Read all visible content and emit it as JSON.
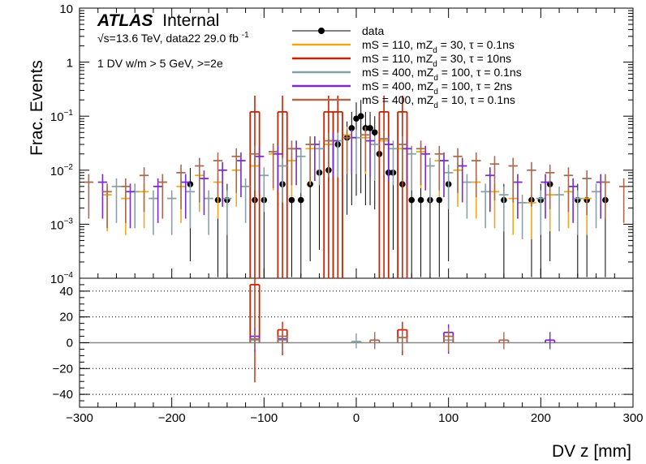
{
  "labels": {
    "atlas": "ATLAS",
    "internal": "Internal",
    "energy_line": "√s=13.6 TeV, data22 29.0 fb",
    "lumi_superscript": "-1",
    "selection": "1 DV w/m > 5 GeV, >=2e"
  },
  "chart_data": [
    {
      "type": "line",
      "panel": "main",
      "title": "",
      "xlabel": "DV z [mm]",
      "ylabel": "Frac. Events",
      "xlim": [
        -300,
        300
      ],
      "ylim": [
        0.0001,
        10
      ],
      "yscale": "log",
      "y_ticks": [
        {
          "v": 10,
          "base": "10",
          "exp": ""
        },
        {
          "v": 1,
          "base": "1",
          "exp": ""
        },
        {
          "v": 0.1,
          "base": "10",
          "exp": "−1"
        },
        {
          "v": 0.01,
          "base": "10",
          "exp": "−2"
        },
        {
          "v": 0.001,
          "base": "10",
          "exp": "−3"
        },
        {
          "v": 0.0001,
          "base": "10",
          "exp": "−4"
        }
      ],
      "bin_width": 10,
      "legend_position": "top-right",
      "series": [
        {
          "name": "data",
          "legend": [
            "data"
          ],
          "color": "#000000",
          "style": "points",
          "x": [
            -180,
            -150,
            -140,
            -110,
            -100,
            -80,
            -70,
            -60,
            -50,
            -40,
            -30,
            -20,
            -10,
            -5,
            0,
            5,
            10,
            15,
            20,
            25,
            35,
            40,
            50,
            60,
            70,
            80,
            90,
            100,
            160,
            190,
            200,
            210,
            240,
            250,
            270
          ],
          "y": [
            0.0055,
            0.0028,
            0.0028,
            0.0028,
            0.0028,
            0.0055,
            0.0028,
            0.0028,
            0.0055,
            0.009,
            0.01,
            0.03,
            0.04,
            0.06,
            0.09,
            0.1,
            0.06,
            0.06,
            0.05,
            0.02,
            0.009,
            0.009,
            0.0055,
            0.0028,
            0.0028,
            0.0028,
            0.0028,
            0.0055,
            0.0028,
            0.0028,
            0.0028,
            0.0055,
            0.0028,
            0.0028,
            0.0028
          ]
        },
        {
          "name": "mS110_mZd30_tau0p1",
          "legend": [
            "mS = 110, mZ",
            "d",
            " = 30, τ = 0.1ns"
          ],
          "color": "#f0a818",
          "style": "hist",
          "x": [
            -270,
            -250,
            -230,
            -210,
            -190,
            -170,
            -150,
            -130,
            -110,
            -90,
            -70,
            -50,
            -30,
            -10,
            10,
            30,
            50,
            70,
            90,
            110,
            130,
            150,
            170,
            190,
            210,
            230,
            250
          ],
          "y": [
            0.0035,
            0.003,
            0.004,
            0.006,
            0.005,
            0.008,
            0.006,
            0.01,
            0.012,
            0.02,
            0.015,
            0.025,
            0.03,
            0.045,
            0.04,
            0.035,
            0.025,
            0.022,
            0.015,
            0.01,
            0.006,
            0.004,
            0.003,
            0.0025,
            0.0035,
            0.004,
            0.003
          ]
        },
        {
          "name": "mS110_mZd30_tau10",
          "legend": [
            "mS = 110, mZ",
            "d",
            " = 30, τ = 10ns"
          ],
          "color": "#cc2200",
          "style": "hist",
          "x": [
            -110,
            -80,
            -30,
            -20,
            30,
            50
          ],
          "y": [
            0.12,
            0.12,
            0.12,
            0.12,
            0.12,
            0.12
          ]
        },
        {
          "name": "mS400_mZd100_tau0p1",
          "legend": [
            "mS = 400, mZ",
            "d",
            " = 100, τ = 0.1ns"
          ],
          "color": "#88a0a8",
          "style": "hist",
          "x": [
            -260,
            -240,
            -220,
            -200,
            -180,
            -160,
            -140,
            -120,
            -100,
            -80,
            -60,
            -40,
            -20,
            0,
            20,
            40,
            60,
            80,
            100,
            120,
            140,
            160,
            180,
            200,
            220,
            240,
            260
          ],
          "y": [
            0.005,
            0.004,
            0.003,
            0.003,
            0.004,
            0.003,
            0.003,
            0.005,
            0.008,
            0.012,
            0.018,
            0.025,
            0.035,
            0.04,
            0.03,
            0.025,
            0.02,
            0.012,
            0.009,
            0.006,
            0.004,
            0.0035,
            0.0025,
            0.003,
            0.0035,
            0.003,
            0.004
          ]
        },
        {
          "name": "mS400_mZd100_tau2",
          "legend": [
            "mS = 400, mZ",
            "d",
            " = 100, τ = 2ns"
          ],
          "color": "#7b2ad0",
          "style": "hist",
          "x": [
            -275,
            -245,
            -215,
            -185,
            -165,
            -145,
            -125,
            -105,
            -85,
            -65,
            -45,
            -25,
            -5,
            15,
            35,
            55,
            75,
            95,
            115,
            145,
            175,
            205,
            235,
            265
          ],
          "y": [
            0.006,
            0.004,
            0.005,
            0.006,
            0.007,
            0.01,
            0.015,
            0.018,
            0.02,
            0.025,
            0.03,
            0.035,
            0.04,
            0.035,
            0.03,
            0.025,
            0.02,
            0.015,
            0.012,
            0.008,
            0.006,
            0.006,
            0.005,
            0.006
          ]
        },
        {
          "name": "mS400_mZd10_tau0p1",
          "legend": [
            "mS = 400, mZ",
            "d",
            " = 10, τ = 0.1ns"
          ],
          "color": "#a86a50",
          "style": "hist",
          "x": [
            -290,
            -270,
            -250,
            -230,
            -210,
            -190,
            -170,
            -150,
            -130,
            -110,
            -90,
            -70,
            -50,
            -30,
            -10,
            10,
            30,
            50,
            70,
            90,
            110,
            130,
            150,
            170,
            190,
            210,
            230,
            250,
            270,
            290
          ],
          "y": [
            0.006,
            0.004,
            0.005,
            0.008,
            0.006,
            0.009,
            0.012,
            0.015,
            0.018,
            0.02,
            0.022,
            0.025,
            0.03,
            0.035,
            0.04,
            0.045,
            0.038,
            0.03,
            0.025,
            0.02,
            0.018,
            0.015,
            0.013,
            0.012,
            0.01,
            0.009,
            0.008,
            0.007,
            0.006,
            0.005
          ]
        }
      ]
    },
    {
      "type": "line",
      "panel": "ratio",
      "xlabel": "DV z [mm]",
      "ylabel": "",
      "xlim": [
        -300,
        300
      ],
      "ylim": [
        -50,
        50
      ],
      "y_ticks": [
        40,
        20,
        0,
        -20,
        -40
      ],
      "x_ticks": [
        -300,
        -200,
        -100,
        0,
        100,
        200,
        300
      ],
      "x_tick_labels": [
        "−300",
        "−200",
        "−100",
        "0",
        "100",
        "200",
        "300"
      ],
      "y_tick_labels": [
        "40",
        "20",
        "0",
        "−20",
        "−40"
      ],
      "gridlines_y": [
        40,
        20,
        -20,
        -40
      ],
      "series": [
        {
          "name": "ratio_tau10",
          "color": "#cc2200",
          "x": [
            -110,
            -80,
            50
          ],
          "y": [
            45,
            10,
            10
          ]
        },
        {
          "name": "ratio_tau2",
          "color": "#7b2ad0",
          "x": [
            -110,
            -80,
            100,
            210
          ],
          "y": [
            5,
            3,
            8,
            2
          ]
        },
        {
          "name": "ratio_tau0p1_100",
          "color": "#88a0a8",
          "x": [
            -110,
            -80,
            0,
            100
          ],
          "y": [
            2,
            2,
            1,
            2
          ]
        },
        {
          "name": "ratio_tau0p1_10",
          "color": "#a86a50",
          "x": [
            -110,
            -80,
            20,
            50,
            100,
            160
          ],
          "y": [
            3,
            5,
            2,
            4,
            5,
            2
          ]
        }
      ]
    }
  ]
}
